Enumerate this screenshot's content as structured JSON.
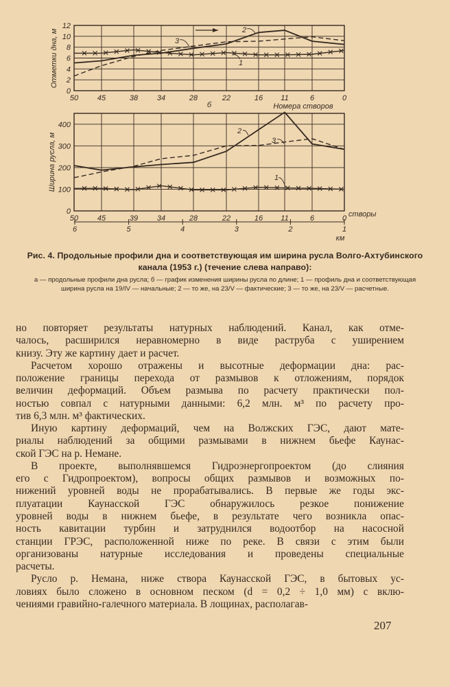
{
  "colors": {
    "paper": "#efd7b2",
    "ink": "#35291f"
  },
  "chart_data": [
    {
      "type": "line",
      "panel": "а",
      "ylabel": "Отметки дна, м",
      "xlabel": "Номера створов",
      "panel_label": "б",
      "x_ticks": [
        50,
        45,
        38,
        34,
        28,
        22,
        16,
        11,
        6,
        0
      ],
      "y_ticks": [
        0,
        2,
        4,
        6,
        8,
        10,
        12
      ],
      "ylim": [
        0,
        12
      ],
      "grid": true,
      "flow_arrow": "right",
      "series": [
        {
          "name": "1",
          "style": "solid-crosses",
          "x": [
            50,
            45,
            38,
            34,
            28,
            22,
            16,
            11,
            6,
            0
          ],
          "y": [
            6.9,
            6.9,
            7.5,
            7.0,
            6.6,
            7.0,
            6.6,
            6.6,
            6.7,
            7.4
          ]
        },
        {
          "name": "2",
          "style": "solid",
          "x": [
            50,
            45,
            38,
            34,
            28,
            22,
            16,
            11,
            6,
            0
          ],
          "y": [
            5.1,
            5.5,
            6.5,
            6.9,
            7.8,
            8.6,
            10.7,
            11.1,
            9.1,
            8.5
          ]
        },
        {
          "name": "3",
          "style": "dashed",
          "x": [
            50,
            45,
            38,
            34,
            28,
            22,
            16,
            11,
            6,
            0
          ],
          "y": [
            2.7,
            4.6,
            6.3,
            7.4,
            8.2,
            9.0,
            9.1,
            9.5,
            9.9,
            9.2
          ]
        }
      ]
    },
    {
      "type": "line",
      "panel": "б",
      "ylabel": "Ширина русла, м",
      "x_ticks": [
        50,
        45,
        39,
        34,
        28,
        22,
        16,
        11,
        6,
        0
      ],
      "x_unit_label": "створы",
      "km_ticks": [
        6,
        5,
        4,
        3,
        2,
        1
      ],
      "km_label": "км",
      "y_ticks": [
        0,
        100,
        200,
        300,
        400
      ],
      "ylim": [
        0,
        450
      ],
      "grid": true,
      "series": [
        {
          "name": "1",
          "style": "solid-crosses",
          "x": [
            50,
            45,
            39,
            34,
            28,
            22,
            16,
            11,
            6,
            0
          ],
          "y": [
            104,
            104,
            98,
            116,
            97,
            97,
            109,
            106,
            104,
            100
          ]
        },
        {
          "name": "2",
          "style": "solid",
          "x": [
            50,
            45,
            39,
            34,
            28,
            22,
            16,
            11,
            6,
            0
          ],
          "y": [
            209,
            188,
            203,
            214,
            224,
            275,
            375,
            455,
            309,
            284
          ]
        },
        {
          "name": "3",
          "style": "dashed",
          "x": [
            50,
            45,
            39,
            34,
            28,
            22,
            16,
            11,
            6,
            0
          ],
          "y": [
            153,
            180,
            206,
            241,
            256,
            300,
            302,
            318,
            333,
            284
          ]
        }
      ]
    }
  ],
  "caption": {
    "title": "Рис. 4. Продольные профили дна и соответствующая им ширина русла Волго-Ахтубинского канала (1953 г.) (течение слева направо):",
    "legend": "а — продольные профили дна русла; б — график изменения ширины русла по длине; 1 — профиль дна и соответствующая ширина русла на 19/IV — начальные; 2 — то же, на 23/V — фактические; 3 — то же, на 23/V — расчетные."
  },
  "body": {
    "lines": [
      "но повторяет результаты натурных наблюдений. Канал, как отме-",
      "чалось, расширился неравномерно в виде раструба с уширением",
      "книзу. Эту же картину дает и расчет.",
      "Расчетом хорошо отражены и высотные деформации дна: рас-",
      "положение границы перехода от размывов к отложениям, порядок",
      "величин деформаций. Объем размыва по расчету практически пол-",
      "ностью совпал с натурными данными: 6,2 млн. м³ по расчету про-",
      "тив 6,3 млн. м³ фактических.",
      "Иную картину деформаций, чем на Волжских ГЭС, дают мате-",
      "риалы наблюдений за общими размывами в нижнем бьефе Каунас-",
      "ской ГЭС на р. Немане.",
      "В проекте, выполнявшемся Гидроэнергопроектом (до слияния",
      "его с Гидропроектом), вопросы общих размывов и возможных по-",
      "нижений уровней воды не прорабатывались. В первые же годы экс-",
      "плуатации Каунасской ГЭС обнаружилось резкое понижение",
      "уровней воды в нижнем бьефе, в результате чего возникла опас-",
      "ность кавитации турбин и затруднился водоотбор на насосной",
      "станции ГРЭС, расположенной ниже по реке. В связи с этим были",
      "организованы натурные исследования и проведены специальные",
      "расчеты.",
      "Русло р. Немана, ниже створа Каунасской ГЭС, в бытовых ус-",
      "ловиях было сложено в основном песком (d = 0,2 ÷ 1,0 мм) с вклю-",
      "чениями гравийно-галечного материала. В лощинах, располагав-"
    ]
  },
  "page_number": "207"
}
